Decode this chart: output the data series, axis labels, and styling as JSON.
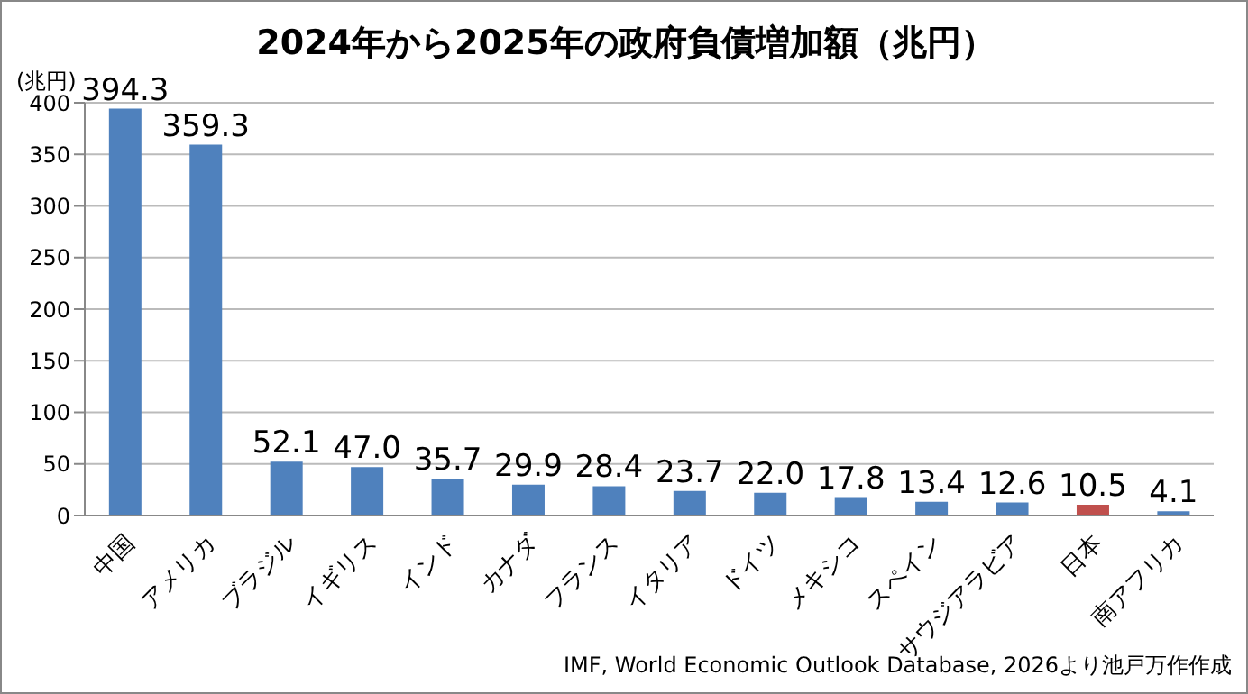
{
  "chart_data": {
    "type": "bar",
    "title": "2024年から2025年の政府負債増加額（兆円）",
    "ylabel": "(兆円)",
    "categories": [
      "中国",
      "アメリカ",
      "ブラジル",
      "イギリス",
      "インド",
      "カナダ",
      "フランス",
      "イタリア",
      "ドイツ",
      "メキシコ",
      "スペイン",
      "サウジアラビア",
      "日本",
      "南アフリカ"
    ],
    "values": [
      394.3,
      359.3,
      52.1,
      47.0,
      35.7,
      29.9,
      28.4,
      23.7,
      22.0,
      17.8,
      13.4,
      12.6,
      10.5,
      4.1
    ],
    "value_labels": [
      "394.3",
      "359.3",
      "52.1",
      "47.0",
      "35.7",
      "29.9",
      "28.4",
      "23.7",
      "22.0",
      "17.8",
      "13.4",
      "12.6",
      "10.5",
      "4.1"
    ],
    "colors": [
      "#4f81bd",
      "#4f81bd",
      "#4f81bd",
      "#4f81bd",
      "#4f81bd",
      "#4f81bd",
      "#4f81bd",
      "#4f81bd",
      "#4f81bd",
      "#4f81bd",
      "#4f81bd",
      "#4f81bd",
      "#c0504d",
      "#4f81bd"
    ],
    "ylim": [
      0,
      400
    ],
    "yticks": [
      0,
      50,
      100,
      150,
      200,
      250,
      300,
      350,
      400
    ],
    "grid": "y",
    "legend": false,
    "annotations": [
      "IMF, World Economic Outlook Database, 2026より池戸万作作成"
    ]
  }
}
